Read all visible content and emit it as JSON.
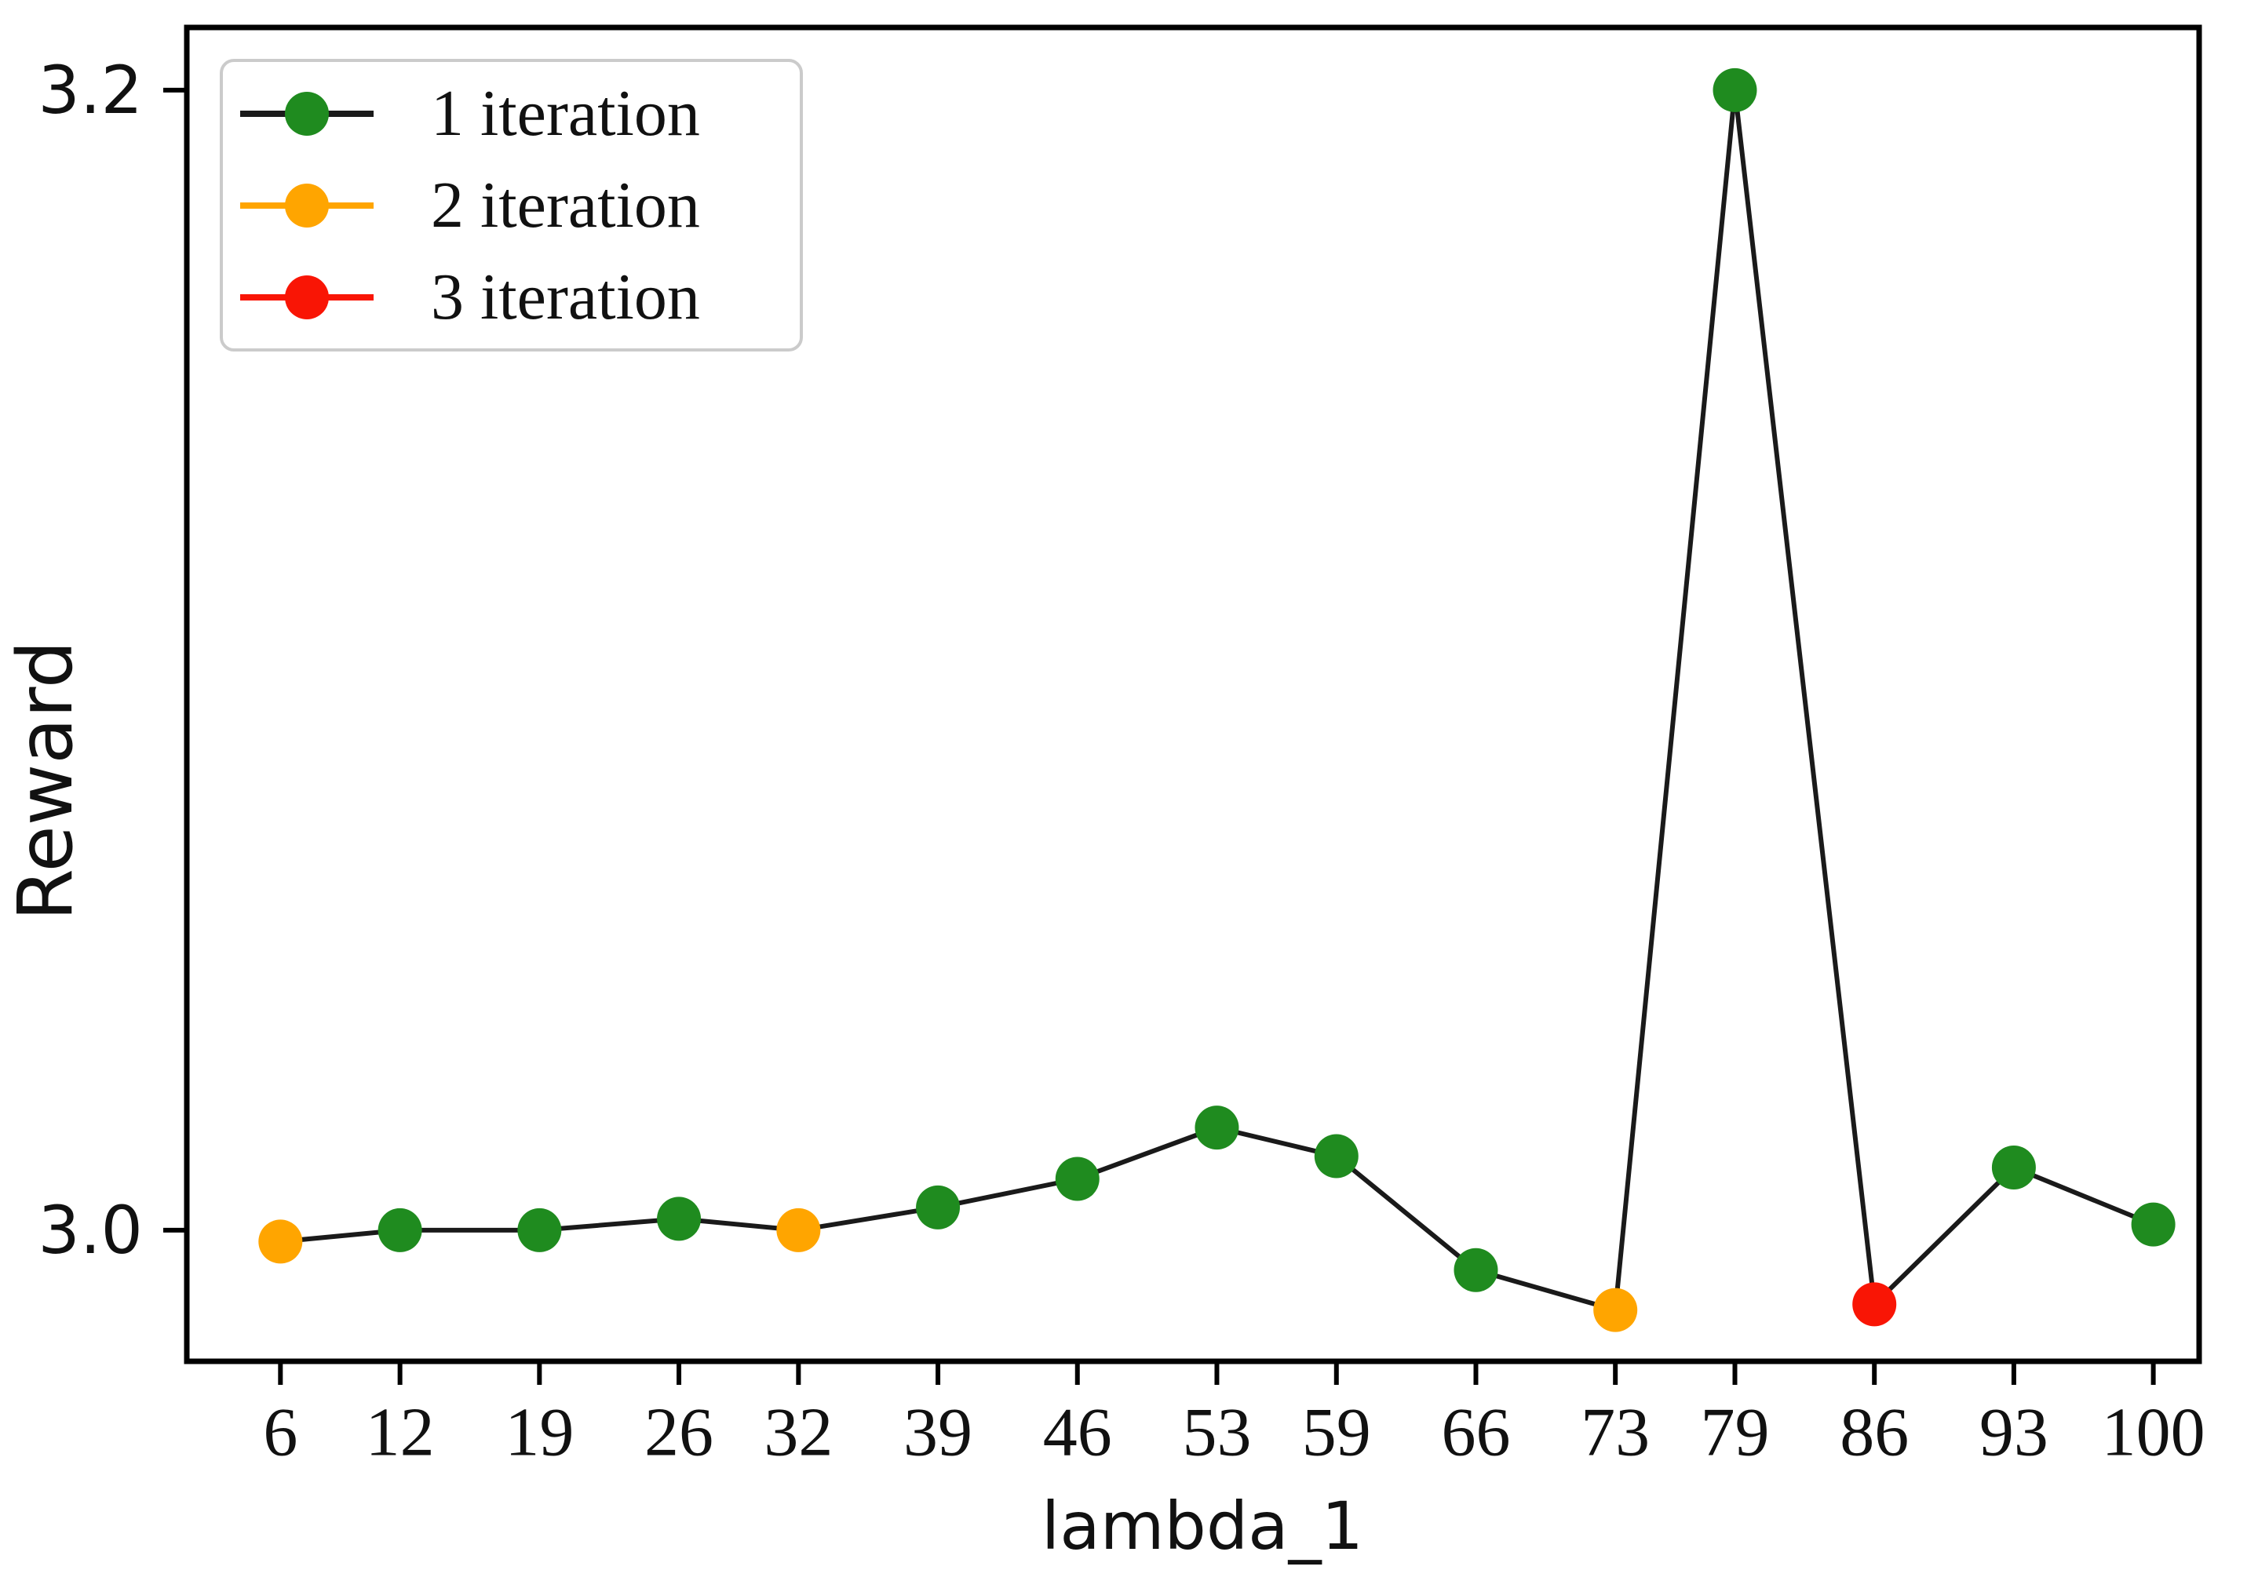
{
  "chart_data": {
    "type": "line",
    "title": "",
    "xlabel": "lambda_1",
    "ylabel": "Reward",
    "x": [
      6,
      12,
      19,
      26,
      32,
      39,
      46,
      53,
      59,
      66,
      73,
      79,
      86,
      93,
      100
    ],
    "series": [
      {
        "name": "Reward",
        "values": [
          2.998,
          3.0,
          3.0,
          3.002,
          3.0,
          3.004,
          3.009,
          3.018,
          3.013,
          2.993,
          2.986,
          3.2,
          2.987,
          3.011,
          3.001
        ]
      }
    ],
    "point_iterations": [
      2,
      1,
      1,
      1,
      2,
      1,
      1,
      1,
      1,
      1,
      2,
      1,
      3,
      1,
      1
    ],
    "iteration_colors": {
      "1": "#1f8b1f",
      "2": "#ffa500",
      "3": "#f91505"
    },
    "line_color": "#1a1a1a",
    "axis_color": "#000000",
    "xticks": [
      "6",
      "12",
      "19",
      "26",
      "32",
      "39",
      "46",
      "53",
      "59",
      "66",
      "73",
      "79",
      "86",
      "93",
      "100"
    ],
    "yticks": [
      {
        "value": 3.0,
        "label": "3.0"
      },
      {
        "value": 3.2,
        "label": "3.2"
      }
    ],
    "xlim": [
      1.3,
      102.3
    ],
    "ylim": [
      2.977,
      3.211
    ],
    "grid": false,
    "legend": {
      "position": "upper-left",
      "items": [
        {
          "label": "1 iteration",
          "marker_color": "#1f8b1f",
          "line_color": "#1a1a1a"
        },
        {
          "label": "2 iteration",
          "marker_color": "#ffa500",
          "line_color": "#ffa500"
        },
        {
          "label": "3 iteration",
          "marker_color": "#f91505",
          "line_color": "#f91505"
        }
      ]
    }
  }
}
